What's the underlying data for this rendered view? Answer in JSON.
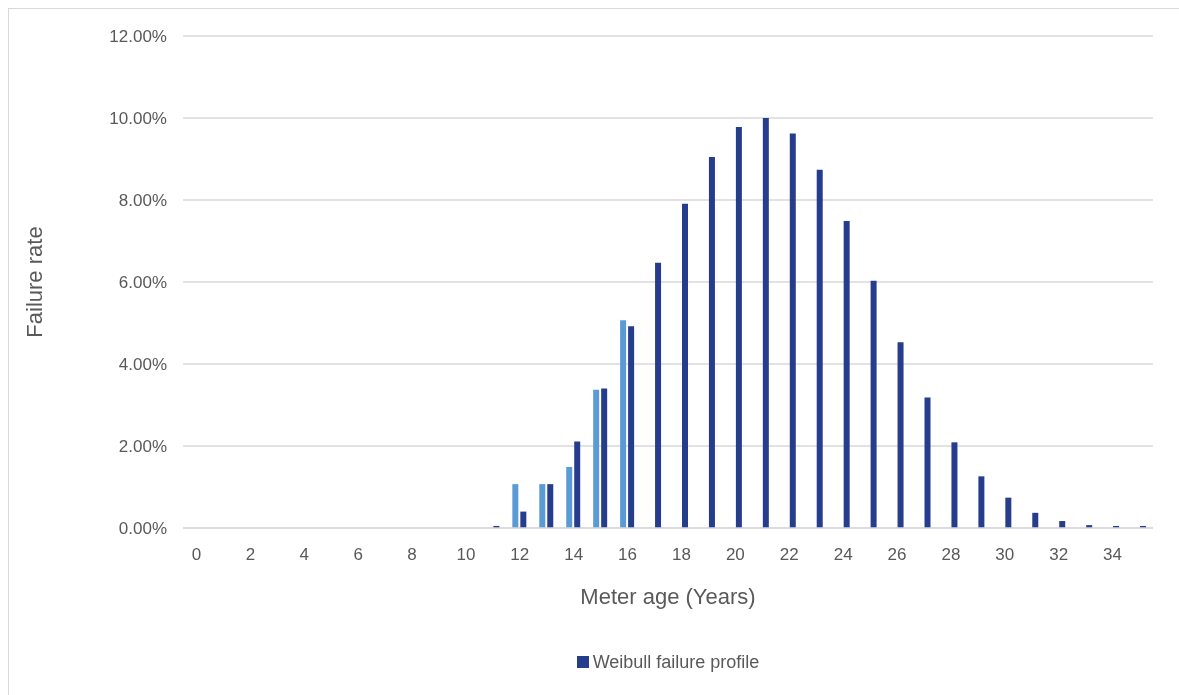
{
  "chart_data": {
    "type": "bar",
    "xlabel": "Meter age (Years)",
    "ylabel": "Failure rate",
    "x": [
      0,
      1,
      2,
      3,
      4,
      5,
      6,
      7,
      8,
      9,
      10,
      11,
      12,
      13,
      14,
      15,
      16,
      17,
      18,
      19,
      20,
      21,
      22,
      23,
      24,
      25,
      26,
      27,
      28,
      29,
      30,
      31,
      32,
      33,
      34,
      35
    ],
    "series": [
      {
        "color": "#5b9bd5",
        "values": [
          null,
          null,
          null,
          null,
          null,
          null,
          null,
          null,
          null,
          null,
          null,
          null,
          1.07,
          1.07,
          1.49,
          3.37,
          5.07,
          null,
          null,
          null,
          null,
          null,
          null,
          null,
          null,
          null,
          null,
          null,
          null,
          null,
          null,
          null,
          null,
          null,
          null,
          null
        ]
      },
      {
        "name": "Weibull failure profile",
        "color": "#263c8c",
        "values": [
          0,
          0,
          0,
          0,
          0,
          0,
          0,
          0,
          0,
          0,
          0,
          0.05,
          0.4,
          1.07,
          2.11,
          3.4,
          4.92,
          6.47,
          7.91,
          9.05,
          9.78,
          10.0,
          9.62,
          8.74,
          7.49,
          6.03,
          4.53,
          3.18,
          2.09,
          1.26,
          0.74,
          0.37,
          0.17,
          0.07,
          0.05,
          0.05
        ]
      }
    ],
    "xlim": [
      -0.5,
      35.5
    ],
    "xticks": [
      0,
      2,
      4,
      6,
      8,
      10,
      12,
      14,
      16,
      18,
      20,
      22,
      24,
      26,
      28,
      30,
      32,
      34
    ],
    "ylim": [
      0,
      12
    ],
    "yticks": [
      {
        "value": 0,
        "label": "0.00%"
      },
      {
        "value": 2,
        "label": "2.00%"
      },
      {
        "value": 4,
        "label": "4.00%"
      },
      {
        "value": 6,
        "label": "6.00%"
      },
      {
        "value": 8,
        "label": "8.00%"
      },
      {
        "value": 10,
        "label": "10.00%"
      },
      {
        "value": 12,
        "label": "12.00%"
      }
    ],
    "grid": "y",
    "legend": "bottom"
  }
}
